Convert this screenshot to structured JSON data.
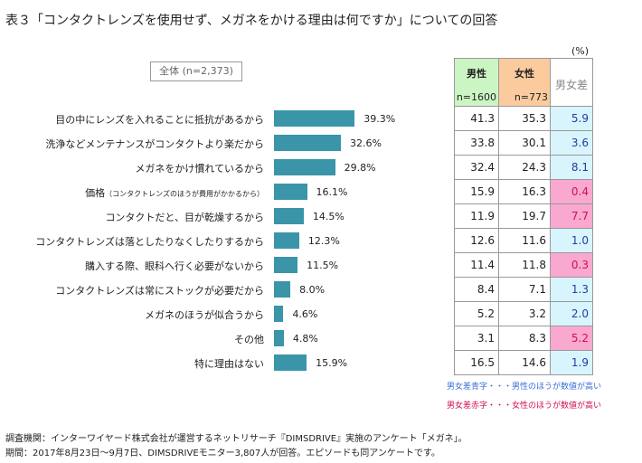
{
  "title": "表３「コンタクトレンズを使用せず、メガネをかける理由は何ですか」についての回答",
  "unit": "(%)",
  "total_label": "全体 (n=2,373)",
  "chart_data": {
    "type": "bar",
    "orientation": "horizontal",
    "categories": [
      "目の中にレンズを入れることに抵抗があるから",
      "洗浄などメンテナンスがコンタクトより楽だから",
      "メガネをかけ慣れているから",
      "価格",
      "コンタクトだと、目が乾燥するから",
      "コンタクトレンズは落としたりなくしたりするから",
      "購入する際、眼科へ行く必要がないから",
      "コンタクトレンズは常にストックが必要だから",
      "メガネのほうが似合うから",
      "その他",
      "特に理由はない"
    ],
    "category_notes": [
      "",
      "",
      "",
      "（コンタクトレンズのほうが費用がかかるから）",
      "",
      "",
      "",
      "",
      "",
      "",
      ""
    ],
    "values": [
      39.3,
      32.6,
      29.8,
      16.1,
      14.5,
      12.3,
      11.5,
      8.0,
      4.6,
      4.8,
      15.9
    ],
    "value_labels": [
      "39.3%",
      "32.6%",
      "29.8%",
      "16.1%",
      "14.5%",
      "12.3%",
      "11.5%",
      "8.0%",
      "4.6%",
      "4.8%",
      "15.9%"
    ],
    "bar_color": "#3a95a8"
  },
  "table": {
    "headers": [
      {
        "label": "男性",
        "n": "n=1600",
        "color": "#ccf5c4"
      },
      {
        "label": "女性",
        "n": "n=773",
        "color": "#fbcb9e"
      },
      {
        "label": "男女差",
        "n": ""
      }
    ],
    "male": [
      "41.3",
      "33.8",
      "32.4",
      "15.9",
      "11.9",
      "12.6",
      "11.4",
      "8.4",
      "5.2",
      "3.1",
      "16.5"
    ],
    "female": [
      "35.3",
      "30.1",
      "24.3",
      "16.3",
      "19.7",
      "11.6",
      "11.8",
      "7.1",
      "3.2",
      "8.3",
      "14.6"
    ],
    "diff": [
      "5.9",
      "3.6",
      "8.1",
      "0.4",
      "7.7",
      "1.0",
      "0.3",
      "1.3",
      "2.0",
      "5.2",
      "1.9"
    ],
    "diff_higher": [
      "male",
      "male",
      "male",
      "female",
      "female",
      "male",
      "female",
      "male",
      "male",
      "female",
      "male"
    ],
    "colors": {
      "male_bg": "#d8f4fc",
      "male_text": "#1f3fa0",
      "female_bg": "#f9a8d0",
      "female_text": "#d0104c"
    }
  },
  "notes": [
    "男女差青字・・・男性のほうが数値が高い",
    "男女差赤字・・・女性のほうが数値が高い"
  ],
  "footer": [
    "調査機関：インターワイヤード株式会社が運営するネットリサーチ『DIMSDRIVE』実施のアンケート「メガネ」。",
    "期間：2017年8月23日～9月7日、DIMSDRIVEモニター3,807人が回答。エピソードも同アンケートです。"
  ]
}
